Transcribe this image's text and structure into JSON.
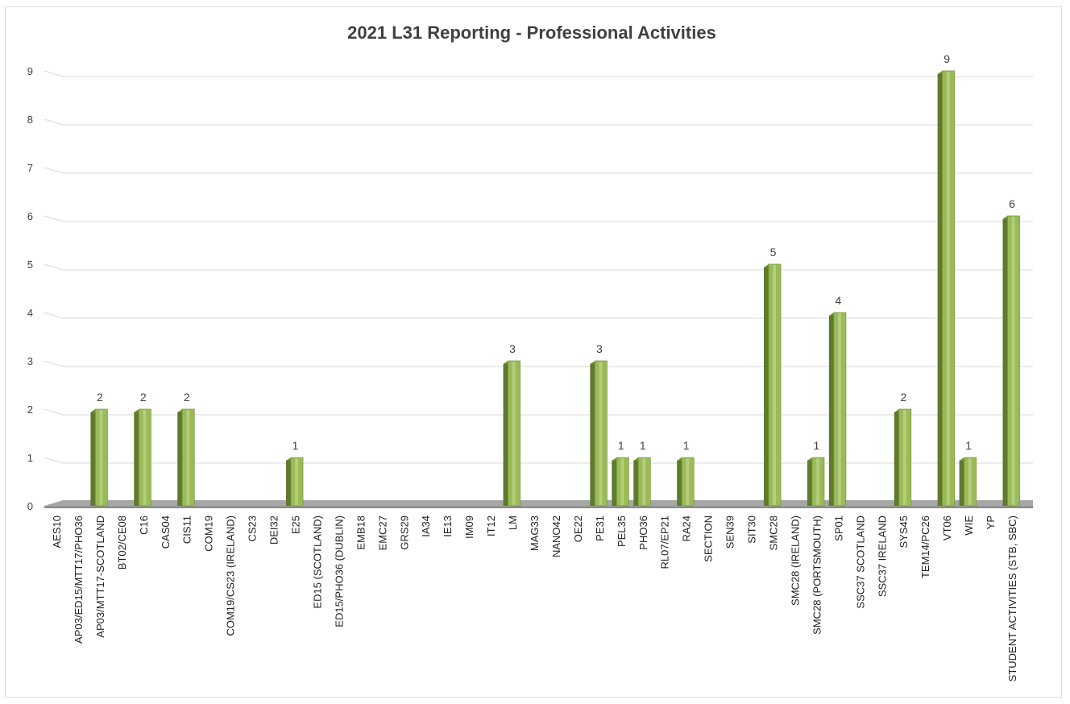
{
  "chart_data": {
    "type": "bar",
    "title": "2021 L31 Reporting - Professional Activities",
    "xlabel": "",
    "ylabel": "",
    "ylim": [
      0,
      9
    ],
    "yticks": [
      "0",
      "1",
      "2",
      "3",
      "4",
      "5",
      "6",
      "7",
      "8",
      "9"
    ],
    "grid": true,
    "legend": "none",
    "style": "3d-column",
    "colors": {
      "bar_front": "#9bbb59",
      "bar_side": "#5f7a2e",
      "bar_highlight": "#c4d99a",
      "floor": "#a6a6a6",
      "grid": "#d9d9d9"
    },
    "categories": [
      "AES10",
      "AP03/ED15/MTT17/PHO36",
      "AP03/MTT17-SCOTLAND",
      "BT02/CE08",
      "C16",
      "CAS04",
      "CIS11",
      "COM19",
      "COM19/CS23 (IRELAND)",
      "CS23",
      "DEI32",
      "E25",
      "ED15 (SCOTLAND)",
      "ED15/PHO36 (DUBLIN)",
      "EMB18",
      "EMC27",
      "GRS29",
      "IA34",
      "IE13",
      "IM09",
      "IT12",
      "LM",
      "MAG33",
      "NANO42",
      "OE22",
      "PE31",
      "PEL35",
      "PHO36",
      "RL07/EP21",
      "RA24",
      "SECTION",
      "SEN39",
      "SIT30",
      "SMC28",
      "SMC28 (IRELAND)",
      "SMC28 (PORTSMOUTH)",
      "SP01",
      "SSC37 SCOTLAND",
      "SSC37 IRELAND",
      "SYS45",
      "TEM14/PC26",
      "VT06",
      "WIE",
      "YP",
      "STUDENT ACTIVITIES (STB, SBC)"
    ],
    "values": [
      0,
      0,
      2,
      0,
      2,
      0,
      2,
      0,
      0,
      0,
      0,
      1,
      0,
      0,
      0,
      0,
      0,
      0,
      0,
      0,
      0,
      3,
      0,
      0,
      0,
      3,
      1,
      1,
      0,
      1,
      0,
      0,
      0,
      5,
      0,
      1,
      4,
      0,
      0,
      2,
      0,
      9,
      1,
      0,
      6
    ]
  }
}
